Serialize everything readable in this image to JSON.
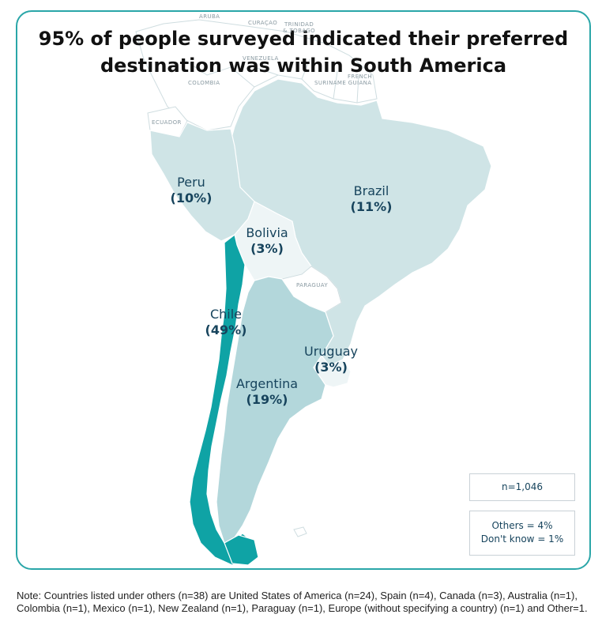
{
  "title": {
    "line1": "95% of people surveyed indicated their preferred",
    "line2": "destination was within South America"
  },
  "map_labels": {
    "aruba": "ARUBA",
    "curacao": "CURAÇAO",
    "trinidad_line1": "TRINIDAD",
    "trinidad_line2": "& TOBAGO",
    "venezuela": "VENEZUELA",
    "colombia": "COLOMBIA",
    "suriname": "SURINAME",
    "guiana_line1": "FRENCH",
    "guiana_line2": "GUIANA",
    "ecuador": "ECUADOR",
    "paraguay": "PARAGUAY"
  },
  "regions": [
    {
      "id": "peru",
      "name": "Peru",
      "pct": "(10%)",
      "value": 10
    },
    {
      "id": "brazil",
      "name": "Brazil",
      "pct": "(11%)",
      "value": 11
    },
    {
      "id": "bolivia",
      "name": "Bolivia",
      "pct": "(3%)",
      "value": 3
    },
    {
      "id": "chile",
      "name": "Chile",
      "pct": "(49%)",
      "value": 49
    },
    {
      "id": "uruguay",
      "name": "Uruguay",
      "pct": "(3%)",
      "value": 3
    },
    {
      "id": "argentina",
      "name": "Argentina",
      "pct": "(19%)",
      "value": 19
    }
  ],
  "sample": "n=1,046",
  "others": {
    "line1": "Others = 4%",
    "line2": "Don't know = 1%"
  },
  "note": "Note: Countries listed under others (n=38) are United States of America (n=24), Spain (n=4), Canada (n=3), Australia (n=1),  Colombia (n=1), Mexico (n=1), New Zealand (n=1), Paraguay (n=1), Europe (without specifying a country) (n=1) and Other=1.",
  "colors": {
    "border": "#2aa6a8",
    "chile": "#0fa3a5",
    "argentina": "#b3d7db",
    "peru_brazil": "#cfe4e6",
    "bolivia_uruguay": "#eef5f6",
    "label_text": "#17445d"
  }
}
